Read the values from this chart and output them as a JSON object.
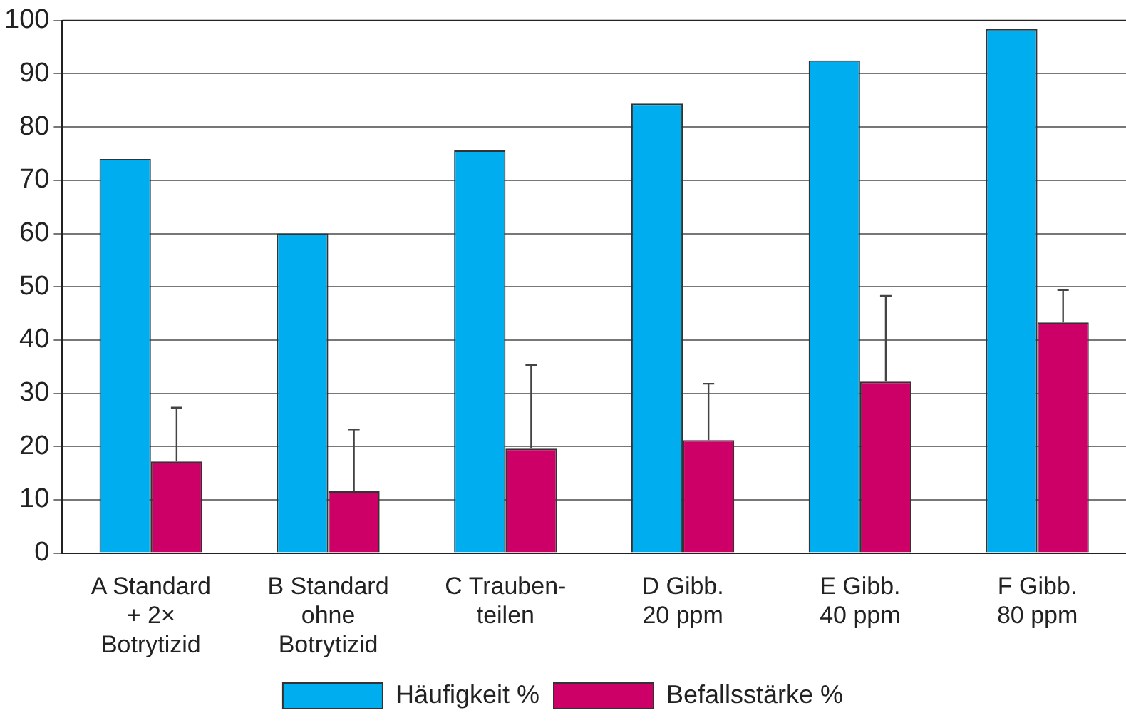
{
  "chart_data": {
    "type": "bar",
    "categories": [
      "A Standard\n+ 2×\nBotrytizid",
      "B Standard\nohne\nBotrytizid",
      "C Trauben-\nteilen",
      "D Gibb.\n20 ppm",
      "E Gibb.\n40 ppm",
      "F Gibb.\n80 ppm"
    ],
    "series": [
      {
        "name": "Häufigkeit %",
        "color": "#00aeef",
        "values": [
          74,
          60,
          75.6,
          84.4,
          92.5,
          98.4
        ]
      },
      {
        "name": "Befallsstärke %",
        "color": "#cc0066",
        "values": [
          17.2,
          11.6,
          19.6,
          21.2,
          32.2,
          43.3
        ],
        "errors": [
          [
            17.2,
            27.3
          ],
          [
            11.6,
            23.2
          ],
          [
            19.6,
            35.3
          ],
          [
            21.2,
            31.8
          ],
          [
            32.2,
            48.3
          ],
          [
            43.3,
            49.4
          ]
        ]
      }
    ],
    "ylim": [
      0,
      100
    ],
    "yticks": [
      0,
      10,
      20,
      30,
      40,
      50,
      60,
      70,
      80,
      90,
      100
    ],
    "grid": "y",
    "legend": "bottom"
  }
}
